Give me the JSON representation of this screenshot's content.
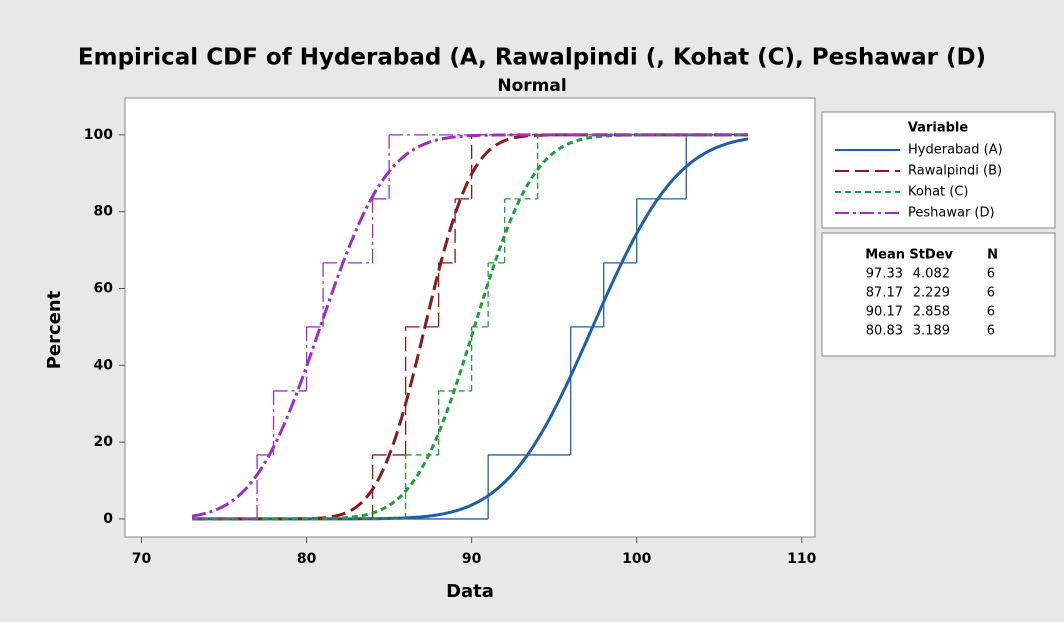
{
  "chart_data": {
    "type": "ecdf",
    "title": "Empirical CDF of Hyderabad (A, Rawalpindi (, Kohat (C), Peshawar (D)",
    "subtitle": "Normal",
    "xlabel": "Data",
    "ylabel": "Percent",
    "xlim": [
      69,
      110.8
    ],
    "ylim": [
      -4.7,
      109.6
    ],
    "xticks": [
      70,
      80,
      90,
      100,
      110
    ],
    "yticks": [
      0,
      20,
      40,
      60,
      80,
      100
    ],
    "legend_title": "Variable",
    "stats_headers": [
      "Mean",
      "StDev",
      "N"
    ],
    "series": [
      {
        "name": "Hyderabad (A)",
        "color": "#1f5fa8",
        "dash": "solid",
        "values": [
          91,
          96,
          96,
          98,
          100,
          103
        ],
        "mean": 97.33,
        "stdev": 4.082,
        "n": 6
      },
      {
        "name": "Rawalpindi (B)",
        "color": "#8b1a1a",
        "dash": "long-dash",
        "values": [
          84,
          86,
          86,
          88,
          89,
          90
        ],
        "mean": 87.17,
        "stdev": 2.229,
        "n": 6
      },
      {
        "name": "Kohat (C)",
        "color": "#1e9e3a",
        "dash": "short-dash",
        "values": [
          86,
          88,
          90,
          91,
          92,
          94
        ],
        "mean": 90.17,
        "stdev": 2.858,
        "n": 6
      },
      {
        "name": "Peshawar (D)",
        "color": "#9b30c0",
        "dash": "dash-dot",
        "values": [
          77,
          78,
          80,
          81,
          84,
          85
        ],
        "mean": 80.83,
        "stdev": 3.189,
        "n": 6
      }
    ]
  }
}
